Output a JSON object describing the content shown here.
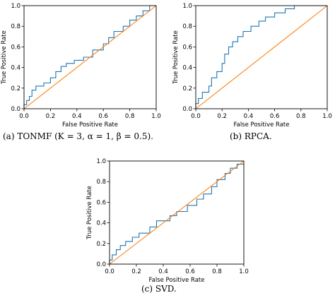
{
  "colors": {
    "roc": "#1f77b4",
    "diagonal": "#ff7f0e",
    "frame": "#000000"
  },
  "chart_data": [
    {
      "type": "line",
      "caption": "(a) TONMF (K = 3, α = 1, β = 0.5).",
      "xlabel": "False Positive Rate",
      "ylabel": "True Positive Rate",
      "xlim": [
        0,
        1
      ],
      "ylim": [
        0,
        1
      ],
      "xticks": [
        "0.0",
        "0.2",
        "0.4",
        "0.6",
        "0.8",
        "1.0"
      ],
      "yticks": [
        "0.0",
        "0.2",
        "0.4",
        "0.6",
        "0.8",
        "1.0"
      ],
      "grid": false,
      "series": [
        {
          "role": "roc",
          "x": [
            0,
            0,
            0.02,
            0.02,
            0.04,
            0.04,
            0.06,
            0.06,
            0.09,
            0.09,
            0.15,
            0.15,
            0.2,
            0.2,
            0.24,
            0.24,
            0.28,
            0.28,
            0.32,
            0.32,
            0.38,
            0.38,
            0.45,
            0.45,
            0.52,
            0.52,
            0.6,
            0.6,
            0.64,
            0.64,
            0.68,
            0.68,
            0.75,
            0.75,
            0.8,
            0.8,
            0.85,
            0.85,
            0.9,
            0.9,
            0.95,
            0.95,
            1.0
          ],
          "y": [
            0,
            0.04,
            0.04,
            0.08,
            0.08,
            0.12,
            0.12,
            0.18,
            0.18,
            0.22,
            0.22,
            0.25,
            0.25,
            0.3,
            0.3,
            0.36,
            0.36,
            0.41,
            0.41,
            0.44,
            0.44,
            0.47,
            0.47,
            0.5,
            0.5,
            0.57,
            0.57,
            0.63,
            0.63,
            0.69,
            0.69,
            0.75,
            0.75,
            0.8,
            0.8,
            0.86,
            0.86,
            0.9,
            0.9,
            0.95,
            0.95,
            1.0,
            1.0
          ]
        },
        {
          "role": "diagonal",
          "x": [
            0,
            1
          ],
          "y": [
            0,
            1
          ]
        }
      ]
    },
    {
      "type": "line",
      "caption": "(b) RPCA.",
      "xlabel": "False Positive Rate",
      "ylabel": "True Positive Rate",
      "xlim": [
        0,
        1
      ],
      "ylim": [
        0,
        1
      ],
      "xticks": [
        "0.0",
        "0.2",
        "0.4",
        "0.6",
        "0.8",
        "1.0"
      ],
      "yticks": [
        "0.0",
        "0.2",
        "0.4",
        "0.6",
        "0.8",
        "1.0"
      ],
      "grid": false,
      "series": [
        {
          "role": "roc",
          "x": [
            0,
            0,
            0.02,
            0.02,
            0.05,
            0.05,
            0.1,
            0.1,
            0.12,
            0.12,
            0.16,
            0.16,
            0.2,
            0.2,
            0.22,
            0.22,
            0.25,
            0.25,
            0.28,
            0.28,
            0.32,
            0.32,
            0.36,
            0.36,
            0.42,
            0.42,
            0.48,
            0.48,
            0.53,
            0.53,
            0.6,
            0.6,
            0.68,
            0.68,
            0.75,
            0.75,
            0.8,
            0.8,
            1.0
          ],
          "y": [
            0,
            0.05,
            0.05,
            0.1,
            0.1,
            0.16,
            0.16,
            0.22,
            0.22,
            0.3,
            0.3,
            0.36,
            0.36,
            0.44,
            0.44,
            0.53,
            0.53,
            0.6,
            0.6,
            0.65,
            0.65,
            0.7,
            0.7,
            0.75,
            0.75,
            0.8,
            0.8,
            0.85,
            0.85,
            0.89,
            0.89,
            0.93,
            0.93,
            0.97,
            0.97,
            1.0,
            1.0,
            1.0,
            1.0
          ]
        },
        {
          "role": "diagonal",
          "x": [
            0,
            1
          ],
          "y": [
            0,
            1
          ]
        }
      ]
    },
    {
      "type": "line",
      "caption": "(c) SVD.",
      "xlabel": "False Positive Rate",
      "ylabel": "True Positive Rate",
      "xlim": [
        0,
        1
      ],
      "ylim": [
        0,
        1
      ],
      "xticks": [
        "0.0",
        "0.2",
        "0.4",
        "0.6",
        "0.8",
        "1.0"
      ],
      "yticks": [
        "0.0",
        "0.2",
        "0.4",
        "0.6",
        "0.8",
        "1.0"
      ],
      "grid": false,
      "series": [
        {
          "role": "roc",
          "x": [
            0,
            0,
            0.02,
            0.02,
            0.05,
            0.05,
            0.08,
            0.08,
            0.12,
            0.12,
            0.17,
            0.17,
            0.22,
            0.22,
            0.3,
            0.3,
            0.35,
            0.35,
            0.45,
            0.45,
            0.5,
            0.5,
            0.58,
            0.58,
            0.65,
            0.65,
            0.7,
            0.7,
            0.76,
            0.76,
            0.8,
            0.8,
            0.86,
            0.86,
            0.9,
            0.9,
            0.95,
            0.95,
            1.0
          ],
          "y": [
            0,
            0.04,
            0.04,
            0.09,
            0.09,
            0.14,
            0.14,
            0.18,
            0.18,
            0.22,
            0.22,
            0.26,
            0.26,
            0.3,
            0.3,
            0.36,
            0.36,
            0.42,
            0.42,
            0.47,
            0.47,
            0.51,
            0.51,
            0.57,
            0.57,
            0.63,
            0.63,
            0.68,
            0.68,
            0.75,
            0.75,
            0.82,
            0.82,
            0.88,
            0.88,
            0.93,
            0.93,
            0.97,
            0.97
          ]
        },
        {
          "role": "diagonal",
          "x": [
            0,
            1
          ],
          "y": [
            0,
            1
          ]
        }
      ]
    }
  ]
}
